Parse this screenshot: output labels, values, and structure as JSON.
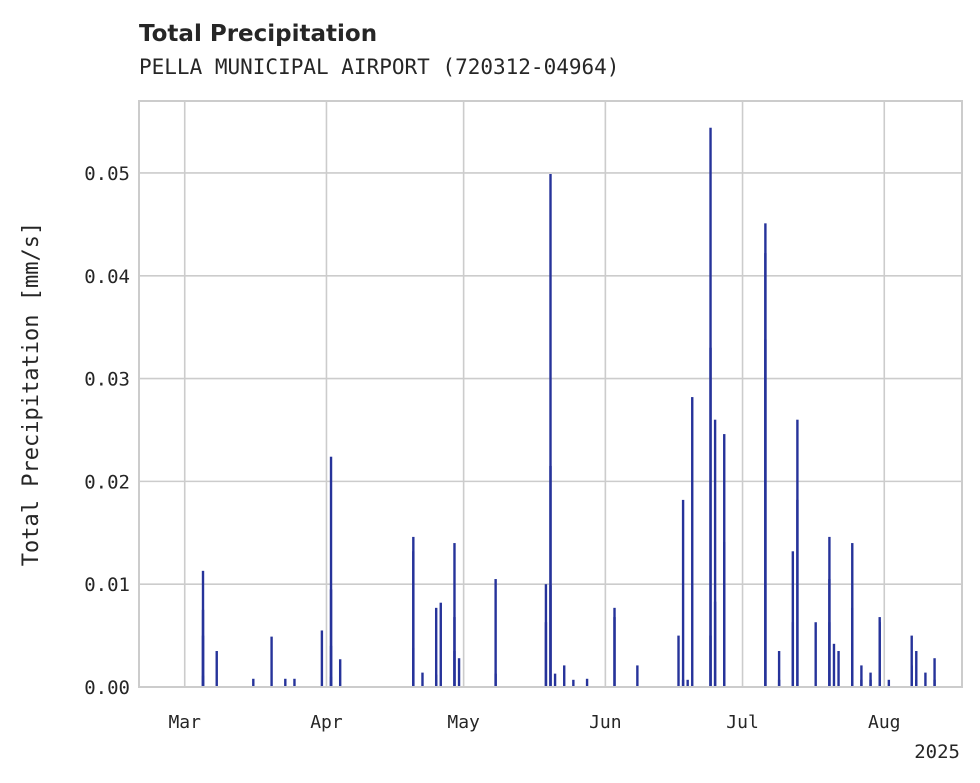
{
  "header": {
    "title": "Total Precipitation",
    "subtitle": "PELLA MUNICIPAL AIRPORT (720312-04964)"
  },
  "colors": {
    "series": "#26339a",
    "grid": "#cccccc",
    "text": "#262626",
    "background": "#ffffff"
  },
  "chart_data": {
    "type": "bar",
    "title": "Total Precipitation",
    "subtitle": "PELLA MUNICIPAL AIRPORT (720312-04964)",
    "xlabel": "",
    "ylabel": "Total Precipitation [mm/s]",
    "x_axis": {
      "kind": "date",
      "range": [
        "2025-02-19",
        "2025-08-18"
      ],
      "ticks": [
        "2025-03-01",
        "2025-04-01",
        "2025-05-01",
        "2025-06-01",
        "2025-07-01",
        "2025-08-01"
      ],
      "tick_labels": [
        "Mar",
        "Apr",
        "May",
        "Jun",
        "Jul",
        "Aug"
      ],
      "offset_label": "2025"
    },
    "y_axis": {
      "range": [
        0,
        0.057
      ],
      "ticks": [
        0.0,
        0.01,
        0.02,
        0.03,
        0.04,
        0.05
      ],
      "tick_labels": [
        "0.00",
        "0.01",
        "0.02",
        "0.03",
        "0.04",
        "0.05"
      ]
    },
    "grid": true,
    "legend": "none",
    "series": [
      {
        "points": [
          [
            "2025-03-05",
            0.0011
          ],
          [
            "2025-03-05",
            0.0113
          ],
          [
            "2025-03-05",
            0.0075
          ],
          [
            "2025-03-05",
            0.005
          ],
          [
            "2025-03-08",
            0.0035
          ],
          [
            "2025-03-16",
            0.0008
          ],
          [
            "2025-03-20",
            0.0049
          ],
          [
            "2025-03-23",
            0.0008
          ],
          [
            "2025-03-25",
            0.0008
          ],
          [
            "2025-03-31",
            0.0055
          ],
          [
            "2025-04-02",
            0.001
          ],
          [
            "2025-04-02",
            0.0095
          ],
          [
            "2025-04-02",
            0.0224
          ],
          [
            "2025-04-02",
            0.004
          ],
          [
            "2025-04-04",
            0.0027
          ],
          [
            "2025-04-20",
            0.0132
          ],
          [
            "2025-04-20",
            0.0038
          ],
          [
            "2025-04-20",
            0.0146
          ],
          [
            "2025-04-22",
            0.0014
          ],
          [
            "2025-04-25",
            0.0077
          ],
          [
            "2025-04-25",
            0.0012
          ],
          [
            "2025-04-26",
            0.0082
          ],
          [
            "2025-04-29",
            0.0035
          ],
          [
            "2025-04-29",
            0.0068
          ],
          [
            "2025-04-29",
            0.014
          ],
          [
            "2025-04-30",
            0.0028
          ],
          [
            "2025-05-08",
            0.0105
          ],
          [
            "2025-05-08",
            0.0013
          ],
          [
            "2025-05-19",
            0.0063
          ],
          [
            "2025-05-19",
            0.01
          ],
          [
            "2025-05-20",
            0.0499
          ],
          [
            "2025-05-20",
            0.0215
          ],
          [
            "2025-05-20",
            0.0099
          ],
          [
            "2025-05-21",
            0.0013
          ],
          [
            "2025-05-23",
            0.0021
          ],
          [
            "2025-05-25",
            0.0007
          ],
          [
            "2025-05-28",
            0.0008
          ],
          [
            "2025-06-03",
            0.0077
          ],
          [
            "2025-06-03",
            0.0068
          ],
          [
            "2025-06-08",
            0.0021
          ],
          [
            "2025-06-17",
            0.005
          ],
          [
            "2025-06-18",
            0.0007
          ],
          [
            "2025-06-18",
            0.0182
          ],
          [
            "2025-06-19",
            0.0007
          ],
          [
            "2025-06-20",
            0.0282
          ],
          [
            "2025-06-24",
            0.0544
          ],
          [
            "2025-06-24",
            0.033
          ],
          [
            "2025-06-24",
            0.005
          ],
          [
            "2025-06-25",
            0.026
          ],
          [
            "2025-06-25",
            0.0083
          ],
          [
            "2025-06-27",
            0.0246
          ],
          [
            "2025-06-27",
            0.0141
          ],
          [
            "2025-07-06",
            0.0451
          ],
          [
            "2025-07-06",
            0.0422
          ],
          [
            "2025-07-06",
            0.0338
          ],
          [
            "2025-07-09",
            0.0035
          ],
          [
            "2025-07-09",
            0.0007
          ],
          [
            "2025-07-12",
            0.0132
          ],
          [
            "2025-07-12",
            0.0063
          ],
          [
            "2025-07-13",
            0.026
          ],
          [
            "2025-07-13",
            0.0182
          ],
          [
            "2025-07-17",
            0.0063
          ],
          [
            "2025-07-20",
            0.0063
          ],
          [
            "2025-07-20",
            0.0146
          ],
          [
            "2025-07-20",
            0.0105
          ],
          [
            "2025-07-21",
            0.0042
          ],
          [
            "2025-07-22",
            0.0035
          ],
          [
            "2025-07-25",
            0.014
          ],
          [
            "2025-07-25",
            0.0077
          ],
          [
            "2025-07-25",
            0.0042
          ],
          [
            "2025-07-27",
            0.0021
          ],
          [
            "2025-07-27",
            0.0007
          ],
          [
            "2025-07-29",
            0.0014
          ],
          [
            "2025-07-29",
            0.0007
          ],
          [
            "2025-07-31",
            0.0068
          ],
          [
            "2025-07-31",
            0.0063
          ],
          [
            "2025-07-31",
            0.0007
          ],
          [
            "2025-08-02",
            0.0007
          ],
          [
            "2025-08-07",
            0.0021
          ],
          [
            "2025-08-07",
            0.005
          ],
          [
            "2025-08-08",
            0.0035
          ],
          [
            "2025-08-08",
            0.0007
          ],
          [
            "2025-08-10",
            0.0014
          ],
          [
            "2025-08-12",
            0.0028
          ],
          [
            "2025-08-12",
            0.0007
          ]
        ]
      }
    ]
  }
}
